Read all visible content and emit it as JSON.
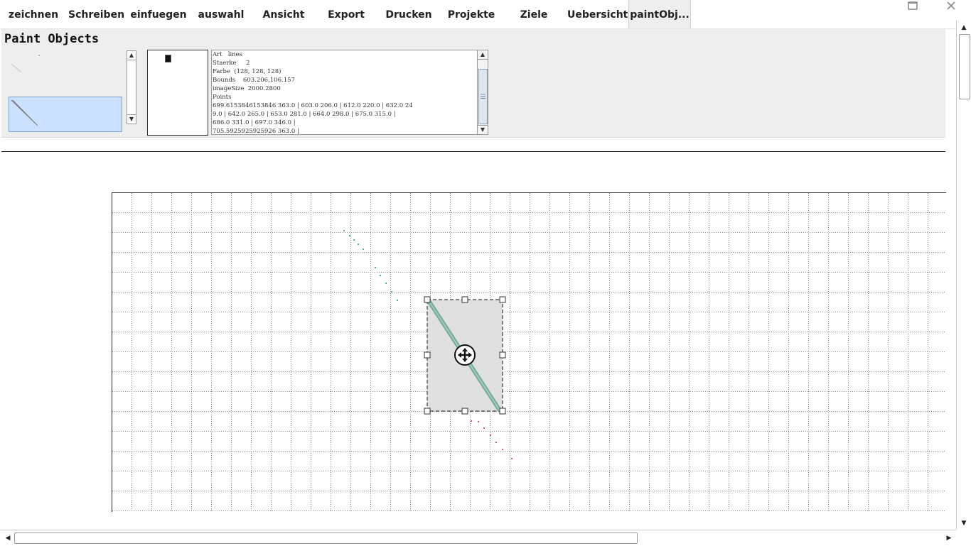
{
  "menu": {
    "tabs": [
      {
        "label": "zeichnen"
      },
      {
        "label": "Schreiben"
      },
      {
        "label": "einfuegen"
      },
      {
        "label": "auswahl"
      },
      {
        "label": "Ansicht"
      },
      {
        "label": "Export"
      },
      {
        "label": "Drucken"
      },
      {
        "label": "Projekte"
      },
      {
        "label": "Ziele"
      },
      {
        "label": "Uebersicht"
      },
      {
        "label": "paintObj..."
      }
    ],
    "active_tab": "paintObj..."
  },
  "window": {
    "maximize_icon": "square-icon",
    "close_icon": "x-icon"
  },
  "panel": {
    "title": "Paint Objects",
    "info_text": "Art   lines\nStaerke     2\nFarbe  (128, 128, 128)\nBounds    603.206,106.157\nimageSize  2000.2800\nPoints\n699.6153846153846 363.0 | 603.0 206.0 | 612.0 220.0 | 632.0 24\n9.0 | 642.0 265.0 | 653.0 281.0 | 664.0 298.0 | 675.0 315.0 |\n686.0 331.0 | 697.0 346.0 |\n705.5925925925926 363.0 |"
  },
  "colors": {
    "accent": "#cce0ff",
    "selection_fill": "#e0e0e0",
    "stroke_main": "#6fa89a",
    "dots_green": "#5fb08a",
    "dots_red": "#d06070",
    "grid": "#8a8a8a"
  }
}
